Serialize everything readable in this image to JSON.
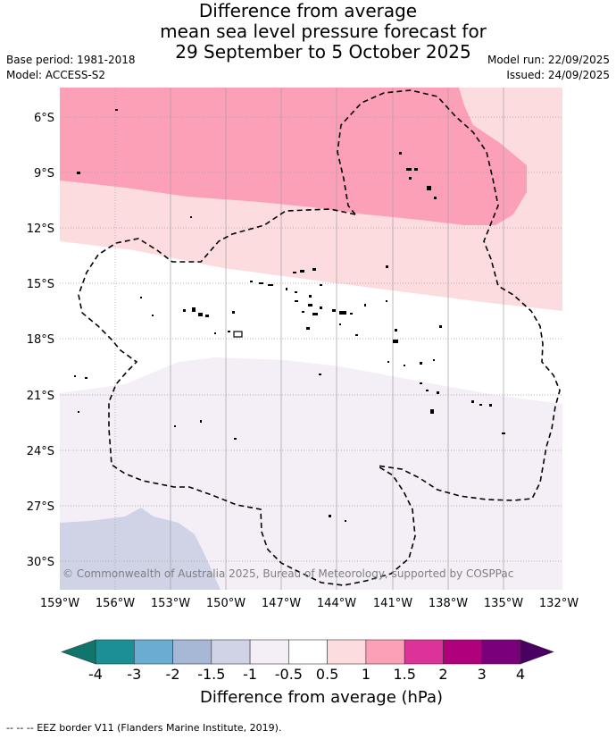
{
  "title": {
    "line1": "Difference from average",
    "line2": "mean sea level pressure forecast for",
    "line3": "29 September to 5 October 2025"
  },
  "meta": {
    "base_period": "Base period: 1981-2018",
    "model": "Model: ACCESS-S2",
    "model_run": "Model run: 22/09/2025",
    "issued": "Issued: 24/09/2025"
  },
  "map": {
    "lat_labels": [
      "6°S",
      "9°S",
      "12°S",
      "15°S",
      "18°S",
      "21°S",
      "24°S",
      "27°S",
      "30°S"
    ],
    "lon_labels": [
      "159°W",
      "156°W",
      "153°W",
      "150°W",
      "147°W",
      "144°W",
      "141°W",
      "138°W",
      "135°W",
      "132°W"
    ],
    "copyright": "© Commonwealth of Australia 2025, Bureau of Meteorology, supported by COSPPac",
    "colors": {
      "pos_1": "#fca0b8",
      "pos_05": "#fddcdf",
      "neutral": "#ffffff",
      "neg_05": "#f4eef6",
      "neg_1": "#d0d3e6"
    }
  },
  "colorbar": {
    "ticks": [
      "-4",
      "-3",
      "-2",
      "-1.5",
      "-1",
      "-0.5",
      "0.5",
      "1",
      "1.5",
      "2",
      "3",
      "4"
    ],
    "colors": [
      "#1a9096",
      "#6aacd2",
      "#a6b8d6",
      "#d0d3e6",
      "#f4eef6",
      "#ffffff",
      "#fddcdf",
      "#fca0b8",
      "#dc3399",
      "#b0007c",
      "#7a0079"
    ],
    "low_extend_color": "#10756a",
    "high_extend_color": "#4a0062",
    "title": "Difference from average (hPa)"
  },
  "legend": {
    "text": "-- -- -- EEZ border V11 (Flanders Marine Institute, 2019)."
  }
}
